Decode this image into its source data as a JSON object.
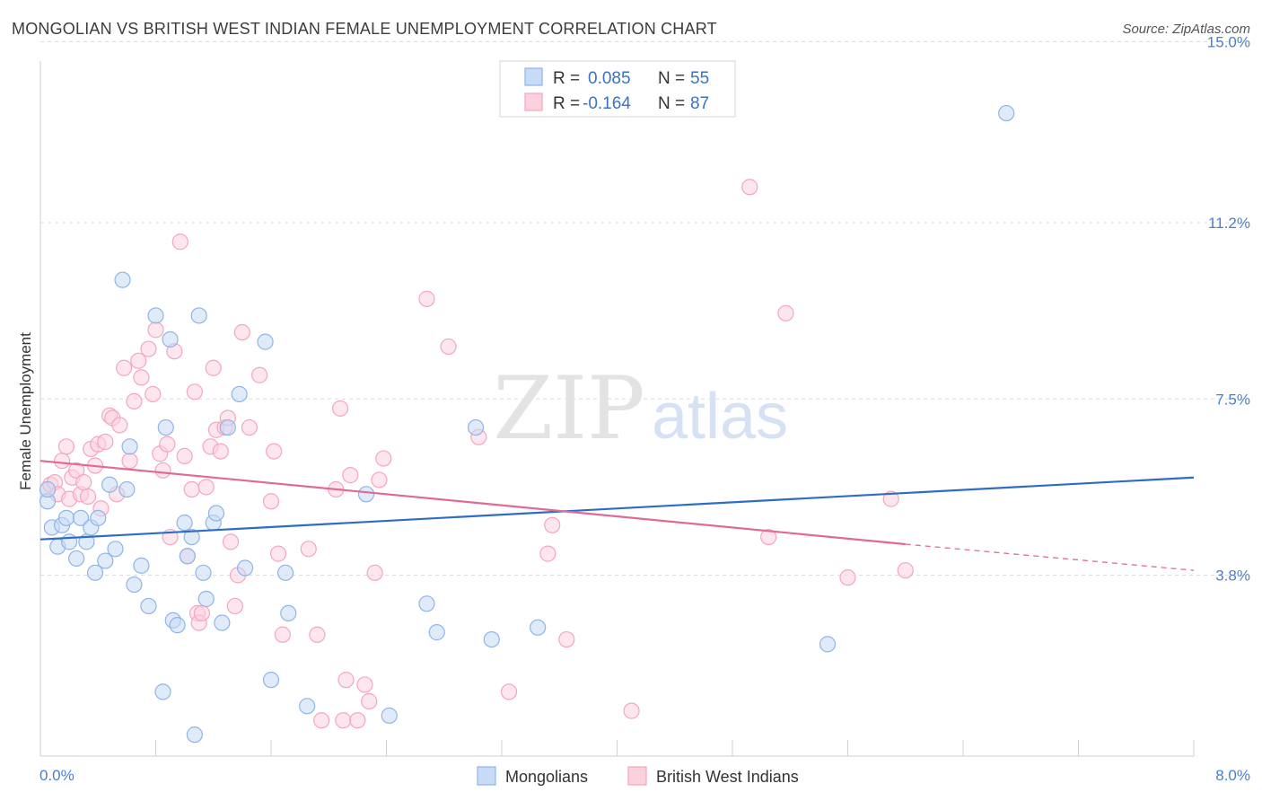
{
  "title": "MONGOLIAN VS BRITISH WEST INDIAN FEMALE UNEMPLOYMENT CORRELATION CHART",
  "source": "Source: ZipAtlas.com",
  "watermark": {
    "zip": "ZIP",
    "atlas": "atlas"
  },
  "chart_data": {
    "type": "scatter",
    "ylabel": "Female Unemployment",
    "xlabel": "",
    "xlim": [
      0,
      8.0
    ],
    "ylim": [
      0,
      15.5
    ],
    "y_ticks": [
      {
        "value": 15.0,
        "label": "15.0%"
      },
      {
        "value": 11.2,
        "label": "11.2%"
      },
      {
        "value": 7.5,
        "label": "7.5%"
      },
      {
        "value": 3.8,
        "label": "3.8%"
      }
    ],
    "x_tick_labels": {
      "left": "0.0%",
      "right": "8.0%"
    },
    "legend": {
      "rows": [
        {
          "r_label": "R =",
          "r_value": "0.085",
          "n_label": "N =",
          "n_value": "55"
        },
        {
          "r_label": "R =",
          "r_value": "-0.164",
          "n_label": "N =",
          "n_value": "87"
        }
      ]
    },
    "series": [
      {
        "name": "Mongolians",
        "color": "#8fb4e8",
        "line_color": "#2f6cc6",
        "trend": {
          "x0": 0.0,
          "y0": 4.55,
          "x1": 8.0,
          "y1": 5.85
        },
        "points": [
          [
            0.05,
            5.35
          ],
          [
            0.05,
            5.6
          ],
          [
            0.08,
            4.8
          ],
          [
            0.12,
            4.4
          ],
          [
            0.15,
            4.85
          ],
          [
            0.18,
            5.0
          ],
          [
            0.2,
            4.5
          ],
          [
            0.25,
            4.15
          ],
          [
            0.28,
            5.0
          ],
          [
            0.32,
            4.5
          ],
          [
            0.35,
            4.8
          ],
          [
            0.38,
            3.85
          ],
          [
            0.4,
            5.0
          ],
          [
            0.45,
            4.1
          ],
          [
            0.48,
            5.7
          ],
          [
            0.52,
            4.35
          ],
          [
            0.57,
            10.0
          ],
          [
            0.6,
            5.6
          ],
          [
            0.62,
            6.5
          ],
          [
            0.65,
            3.6
          ],
          [
            0.7,
            4.0
          ],
          [
            0.75,
            3.15
          ],
          [
            0.8,
            9.25
          ],
          [
            0.85,
            1.35
          ],
          [
            0.87,
            6.9
          ],
          [
            0.9,
            8.75
          ],
          [
            0.92,
            2.85
          ],
          [
            0.95,
            2.75
          ],
          [
            1.0,
            4.9
          ],
          [
            1.02,
            4.2
          ],
          [
            1.05,
            4.6
          ],
          [
            1.07,
            0.45
          ],
          [
            1.1,
            9.25
          ],
          [
            1.13,
            3.85
          ],
          [
            1.15,
            3.3
          ],
          [
            1.2,
            4.9
          ],
          [
            1.22,
            5.1
          ],
          [
            1.26,
            2.8
          ],
          [
            1.3,
            6.9
          ],
          [
            1.38,
            7.6
          ],
          [
            1.42,
            3.95
          ],
          [
            1.56,
            8.7
          ],
          [
            1.6,
            1.6
          ],
          [
            1.7,
            3.85
          ],
          [
            1.72,
            3.0
          ],
          [
            1.85,
            1.05
          ],
          [
            2.26,
            5.5
          ],
          [
            2.42,
            0.85
          ],
          [
            2.68,
            3.2
          ],
          [
            2.75,
            2.6
          ],
          [
            3.02,
            6.9
          ],
          [
            3.13,
            2.45
          ],
          [
            3.45,
            2.7
          ],
          [
            5.46,
            2.35
          ],
          [
            6.7,
            13.5
          ]
        ]
      },
      {
        "name": "British West Indians",
        "color": "#f4a6bf",
        "line_color": "#e06a95",
        "trend": {
          "x0": 0.0,
          "y0": 6.2,
          "x1": 6.0,
          "y1": 4.45
        },
        "trend_dashed": {
          "x0": 6.0,
          "y0": 4.45,
          "x1": 8.0,
          "y1": 3.9
        },
        "points": [
          [
            0.05,
            5.6
          ],
          [
            0.07,
            5.7
          ],
          [
            0.1,
            5.75
          ],
          [
            0.12,
            5.5
          ],
          [
            0.15,
            6.2
          ],
          [
            0.18,
            6.5
          ],
          [
            0.2,
            5.4
          ],
          [
            0.22,
            5.85
          ],
          [
            0.25,
            6.0
          ],
          [
            0.28,
            5.5
          ],
          [
            0.3,
            5.75
          ],
          [
            0.33,
            5.45
          ],
          [
            0.35,
            6.45
          ],
          [
            0.38,
            6.1
          ],
          [
            0.4,
            6.55
          ],
          [
            0.42,
            5.2
          ],
          [
            0.45,
            6.6
          ],
          [
            0.48,
            7.15
          ],
          [
            0.5,
            7.1
          ],
          [
            0.53,
            5.5
          ],
          [
            0.55,
            6.95
          ],
          [
            0.58,
            8.15
          ],
          [
            0.62,
            6.2
          ],
          [
            0.65,
            7.45
          ],
          [
            0.68,
            8.3
          ],
          [
            0.7,
            7.95
          ],
          [
            0.75,
            8.55
          ],
          [
            0.78,
            7.6
          ],
          [
            0.8,
            8.95
          ],
          [
            0.83,
            6.35
          ],
          [
            0.85,
            6.0
          ],
          [
            0.88,
            6.55
          ],
          [
            0.9,
            4.6
          ],
          [
            0.93,
            8.5
          ],
          [
            0.97,
            10.8
          ],
          [
            1.0,
            6.3
          ],
          [
            1.02,
            4.2
          ],
          [
            1.05,
            5.6
          ],
          [
            1.07,
            7.65
          ],
          [
            1.09,
            3.0
          ],
          [
            1.1,
            2.8
          ],
          [
            1.12,
            3.0
          ],
          [
            1.15,
            5.65
          ],
          [
            1.18,
            6.5
          ],
          [
            1.2,
            8.15
          ],
          [
            1.22,
            6.85
          ],
          [
            1.25,
            6.4
          ],
          [
            1.28,
            6.9
          ],
          [
            1.3,
            7.1
          ],
          [
            1.32,
            4.5
          ],
          [
            1.35,
            3.15
          ],
          [
            1.37,
            3.8
          ],
          [
            1.4,
            8.9
          ],
          [
            1.45,
            6.9
          ],
          [
            1.52,
            8.0
          ],
          [
            1.6,
            5.35
          ],
          [
            1.62,
            6.4
          ],
          [
            1.65,
            4.25
          ],
          [
            1.68,
            2.55
          ],
          [
            1.86,
            4.35
          ],
          [
            1.92,
            2.55
          ],
          [
            1.95,
            0.75
          ],
          [
            2.05,
            5.6
          ],
          [
            2.08,
            7.3
          ],
          [
            2.1,
            0.75
          ],
          [
            2.12,
            1.6
          ],
          [
            2.15,
            5.9
          ],
          [
            2.2,
            0.75
          ],
          [
            2.25,
            1.5
          ],
          [
            2.28,
            1.15
          ],
          [
            2.32,
            3.85
          ],
          [
            2.35,
            5.8
          ],
          [
            2.38,
            6.25
          ],
          [
            2.68,
            9.6
          ],
          [
            2.83,
            8.6
          ],
          [
            3.04,
            6.7
          ],
          [
            3.25,
            1.35
          ],
          [
            3.52,
            4.25
          ],
          [
            3.55,
            4.85
          ],
          [
            3.65,
            2.45
          ],
          [
            4.1,
            0.95
          ],
          [
            4.92,
            11.95
          ],
          [
            5.05,
            4.6
          ],
          [
            5.17,
            9.3
          ],
          [
            5.6,
            3.75
          ],
          [
            5.9,
            5.4
          ],
          [
            6.0,
            3.9
          ]
        ]
      }
    ]
  }
}
